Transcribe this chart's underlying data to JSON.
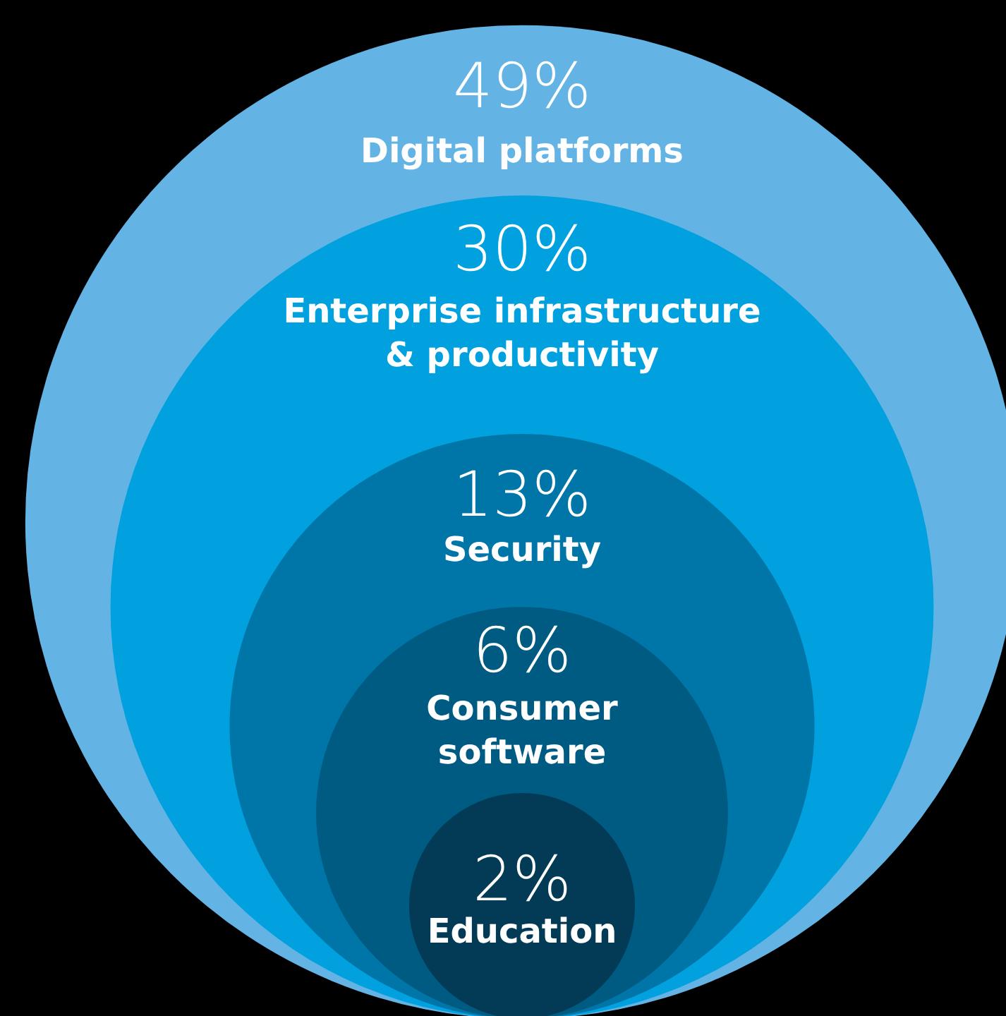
{
  "chart_data": {
    "type": "other",
    "categories": [
      "Digital platforms",
      "Enterprise infrastructure\n& productivity",
      "Security",
      "Consumer\nsoftware",
      "Education"
    ],
    "values": [
      49,
      30,
      13,
      6,
      2
    ],
    "value_labels": [
      "49%",
      "30%",
      "13%",
      "6%",
      "2%"
    ],
    "colors": [
      "#63b4e5",
      "#00a1de",
      "#0076a8",
      "#005b82",
      "#033a55"
    ]
  }
}
